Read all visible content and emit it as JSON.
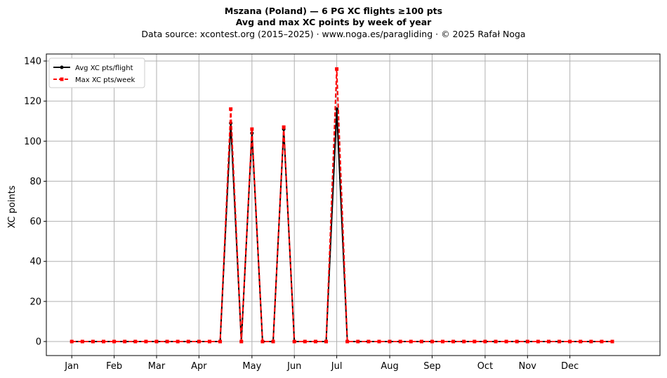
{
  "chart_data": {
    "type": "line",
    "title": "Mszana (Poland)  —  6 PG XC flights ≥100 pts",
    "subtitle": "Avg and max XC points by week of year",
    "source_note": "Data source: xcontest.org (2015–2025)  ·  www.noga.es/paragliding  ·  © 2025 Rafał Noga",
    "xlabel": "",
    "ylabel": "XC points",
    "x_ticks": [
      {
        "label": "Jan",
        "week": 1
      },
      {
        "label": "Feb",
        "week": 5
      },
      {
        "label": "Mar",
        "week": 9
      },
      {
        "label": "Apr",
        "week": 13
      },
      {
        "label": "May",
        "week": 18
      },
      {
        "label": "Jun",
        "week": 22
      },
      {
        "label": "Jul",
        "week": 26
      },
      {
        "label": "Aug",
        "week": 31
      },
      {
        "label": "Sep",
        "week": 35
      },
      {
        "label": "Oct",
        "week": 40
      },
      {
        "label": "Nov",
        "week": 44
      },
      {
        "label": "Dec",
        "week": 48
      }
    ],
    "y_ticks": [
      0,
      20,
      40,
      60,
      80,
      100,
      120,
      140
    ],
    "xlim": [
      -1.4,
      56.5
    ],
    "ylim": [
      -7,
      143.5
    ],
    "grid": true,
    "legend_position": "top-left",
    "x": [
      1,
      2,
      3,
      4,
      5,
      6,
      7,
      8,
      9,
      10,
      11,
      12,
      13,
      14,
      15,
      16,
      17,
      18,
      19,
      20,
      21,
      22,
      23,
      24,
      25,
      26,
      27,
      28,
      29,
      30,
      31,
      32,
      33,
      34,
      35,
      36,
      37,
      38,
      39,
      40,
      41,
      42,
      43,
      44,
      45,
      46,
      47,
      48,
      49,
      50,
      51,
      52
    ],
    "series": [
      {
        "name": "Avg XC pts/flight",
        "color": "#000000",
        "style": "solid",
        "marker": "circle",
        "values": [
          0,
          0,
          0,
          0,
          0,
          0,
          0,
          0,
          0,
          0,
          0,
          0,
          0,
          0,
          0,
          109,
          0,
          104,
          0,
          0,
          106,
          0,
          0,
          0,
          0,
          116,
          0,
          0,
          0,
          0,
          0,
          0,
          0,
          0,
          0,
          0,
          0,
          0,
          0,
          0,
          0,
          0,
          0,
          0,
          0,
          0,
          0,
          0,
          0,
          0,
          0,
          0
        ]
      },
      {
        "name": "Max XC pts/week",
        "color": "#ff0000",
        "style": "dashed",
        "marker": "square",
        "values": [
          0,
          0,
          0,
          0,
          0,
          0,
          0,
          0,
          0,
          0,
          0,
          0,
          0,
          0,
          0,
          116,
          0,
          106,
          0,
          0,
          107,
          0,
          0,
          0,
          0,
          136,
          0,
          0,
          0,
          0,
          0,
          0,
          0,
          0,
          0,
          0,
          0,
          0,
          0,
          0,
          0,
          0,
          0,
          0,
          0,
          0,
          0,
          0,
          0,
          0,
          0,
          0
        ]
      }
    ]
  }
}
